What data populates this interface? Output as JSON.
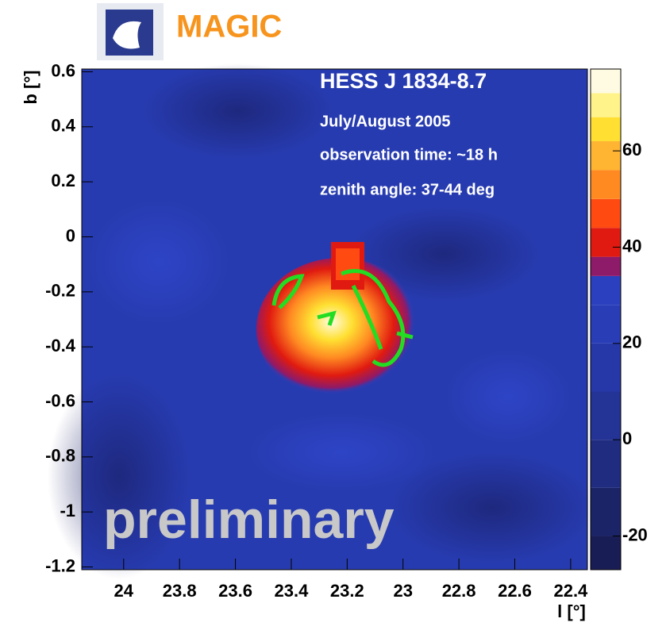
{
  "logo_text": "MAGIC",
  "chart_data": {
    "type": "heatmap",
    "title": "HESS J 1834-8.7",
    "annotations": [
      "July/August 2005",
      "observation time: ~18 h",
      "zenith angle: 37-44 deg"
    ],
    "watermark": "preliminary",
    "xlabel": "l [°]",
    "ylabel": "b [°]",
    "xlim": [
      24.15,
      22.34
    ],
    "xticks": [
      24,
      23.8,
      23.6,
      23.4,
      23.2,
      23,
      22.8,
      22.6,
      22.4
    ],
    "ylim": [
      -1.21,
      0.61
    ],
    "yticks": [
      0.6,
      0.4,
      0.2,
      0,
      -0.2,
      -0.4,
      -0.6,
      -0.8,
      -1,
      -1.2
    ],
    "zlim": [
      -27,
      77
    ],
    "zticks": [
      -20,
      0,
      20,
      40,
      60
    ],
    "colorscale": [
      {
        "value": -27,
        "color": "#191d55"
      },
      {
        "value": -20,
        "color": "#1c2468"
      },
      {
        "value": -10,
        "color": "#202c80"
      },
      {
        "value": 0,
        "color": "#233396"
      },
      {
        "value": 10,
        "color": "#2638a8"
      },
      {
        "value": 20,
        "color": "#293db6"
      },
      {
        "value": 28,
        "color": "#2b40bf"
      },
      {
        "value": 34,
        "color": "#8e1a6a"
      },
      {
        "value": 38,
        "color": "#e01a10"
      },
      {
        "value": 44,
        "color": "#ff4a12"
      },
      {
        "value": 50,
        "color": "#ff8a22"
      },
      {
        "value": 56,
        "color": "#ffb432"
      },
      {
        "value": 62,
        "color": "#ffe032"
      },
      {
        "value": 67,
        "color": "#fff38a"
      },
      {
        "value": 72,
        "color": "#fffbe2"
      }
    ]
  }
}
